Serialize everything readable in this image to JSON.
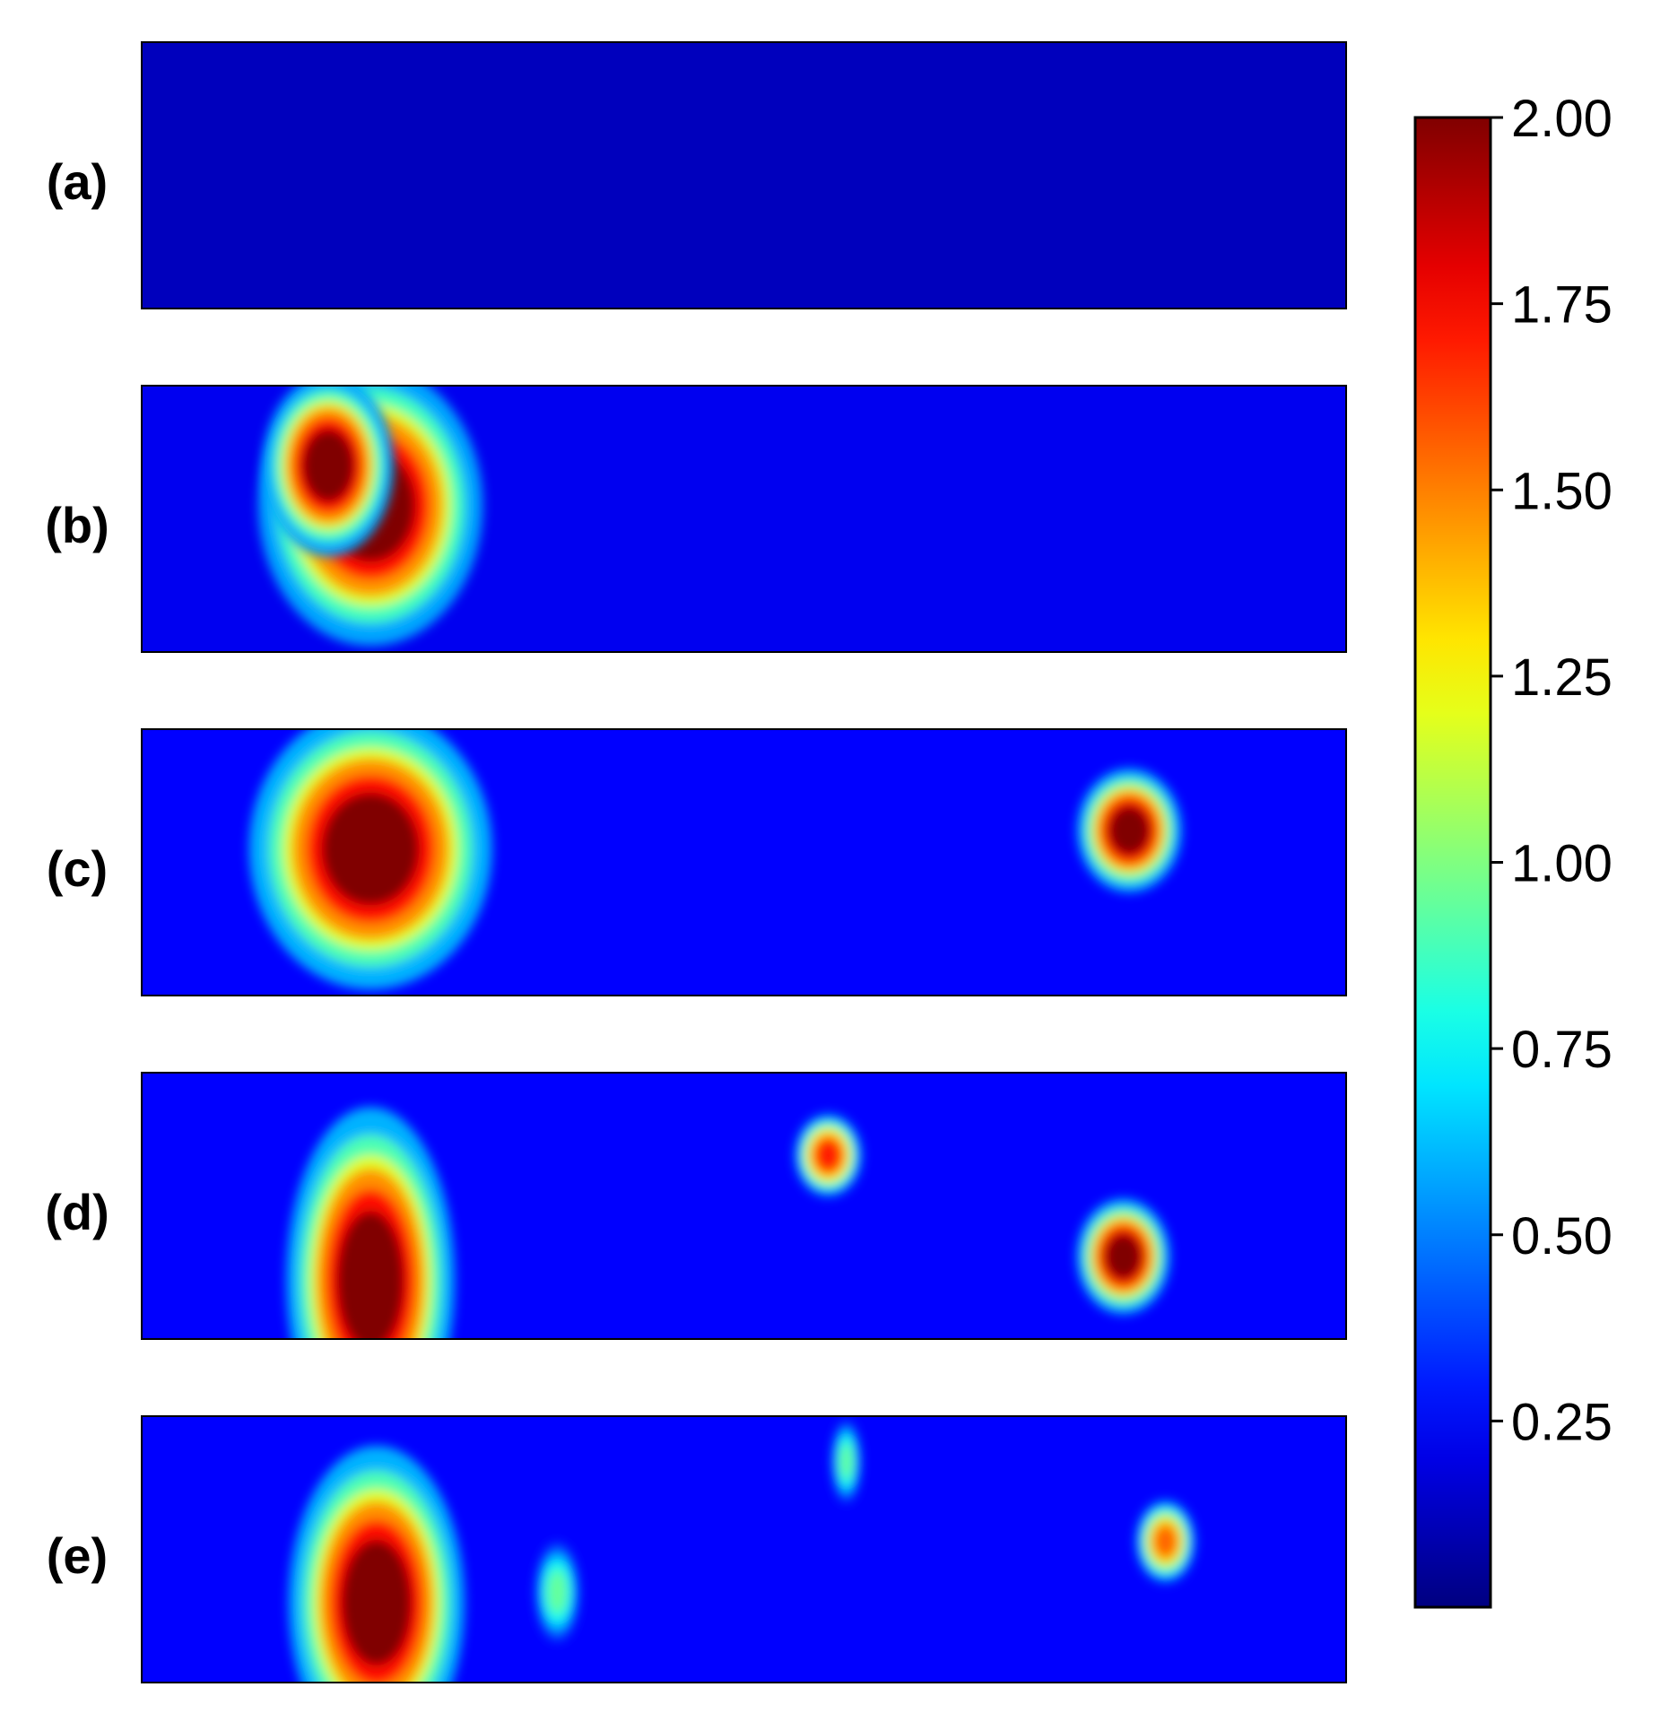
{
  "chart_data": {
    "type": "heatmap",
    "title": "",
    "xlabel": "",
    "ylabel": "",
    "colormap": "jet",
    "colorbar": {
      "min": 0,
      "max": 2.0,
      "ticks": [
        {
          "value": 2.0,
          "label": "2.00"
        },
        {
          "value": 1.75,
          "label": "1.75"
        },
        {
          "value": 1.5,
          "label": "1.50"
        },
        {
          "value": 1.25,
          "label": "1.25"
        },
        {
          "value": 1.0,
          "label": "1.00"
        },
        {
          "value": 0.75,
          "label": "0.75"
        },
        {
          "value": 0.5,
          "label": "0.50"
        },
        {
          "value": 0.25,
          "label": "0.25"
        }
      ],
      "placement": "right"
    },
    "panels": [
      {
        "label": "(a)",
        "background": 0.12,
        "hotspots": []
      },
      {
        "label": "(b)",
        "background": 0.22,
        "hotspots": [
          {
            "x": 0.19,
            "y": 0.45,
            "rx": 0.06,
            "ry": 0.34,
            "peak": 2.0
          },
          {
            "x": 0.155,
            "y": 0.3,
            "rx": 0.035,
            "ry": 0.22,
            "peak": 2.0
          }
        ]
      },
      {
        "label": "(c)",
        "background": 0.25,
        "hotspots": [
          {
            "x": 0.19,
            "y": 0.45,
            "rx": 0.065,
            "ry": 0.34,
            "peak": 2.0
          },
          {
            "x": 0.82,
            "y": 0.38,
            "rx": 0.028,
            "ry": 0.15,
            "peak": 2.0
          }
        ]
      },
      {
        "label": "(d)",
        "background": 0.25,
        "hotspots": [
          {
            "x": 0.19,
            "y": 0.78,
            "rx": 0.045,
            "ry": 0.42,
            "peak": 2.0
          },
          {
            "x": 0.57,
            "y": 0.31,
            "rx": 0.018,
            "ry": 0.1,
            "peak": 1.7
          },
          {
            "x": 0.815,
            "y": 0.69,
            "rx": 0.025,
            "ry": 0.14,
            "peak": 2.0
          }
        ]
      },
      {
        "label": "(e)",
        "background": 0.25,
        "hotspots": [
          {
            "x": 0.195,
            "y": 0.7,
            "rx": 0.047,
            "ry": 0.38,
            "peak": 2.0
          },
          {
            "x": 0.585,
            "y": 0.17,
            "rx": 0.008,
            "ry": 0.1,
            "peak": 0.95
          },
          {
            "x": 0.85,
            "y": 0.47,
            "rx": 0.016,
            "ry": 0.1,
            "peak": 1.55
          },
          {
            "x": 0.345,
            "y": 0.66,
            "rx": 0.012,
            "ry": 0.12,
            "peak": 0.95
          }
        ]
      }
    ]
  }
}
